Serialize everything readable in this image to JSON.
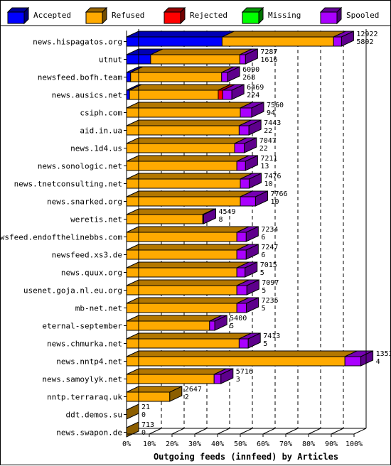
{
  "chart_data": {
    "type": "bar",
    "orientation": "horizontal",
    "stacked": true,
    "style": "3d",
    "title": "",
    "xlabel": "Outgoing feeds (innfeed) by Articles",
    "ylabel": "",
    "x_ticks": [
      "0%",
      "10%",
      "20%",
      "30%",
      "40%",
      "50%",
      "60%",
      "70%",
      "80%",
      "90%",
      "100%"
    ],
    "xlim": [
      0,
      100
    ],
    "legend_position": "top",
    "series": [
      {
        "name": "Accepted",
        "color": "#0000ff",
        "values": [
          42.0,
          10.6,
          1.8,
          1.3,
          0.0,
          0.0,
          0.0,
          0.0,
          0.0,
          0.0,
          0.0,
          0.0,
          0.0,
          0.0,
          0.0,
          0.0,
          0.0,
          0.0,
          0.0,
          0.0,
          0.0,
          0.0,
          0.0
        ]
      },
      {
        "name": "Refused",
        "color": "#ffaa00",
        "values": [
          49.0,
          39.2,
          40.0,
          39.0,
          50.0,
          49.5,
          47.5,
          48.5,
          50.0,
          50.0,
          33.5,
          48.5,
          48.5,
          48.5,
          48.5,
          48.5,
          36.5,
          49.5,
          96.0,
          38.5,
          19.0,
          0.0,
          0.0
        ]
      },
      {
        "name": "Rejected",
        "color": "#ff0000",
        "values": [
          0.0,
          0.0,
          0.0,
          2.0,
          0.0,
          0.0,
          0.0,
          0.0,
          0.0,
          0.0,
          0.0,
          0.0,
          0.0,
          0.0,
          0.0,
          0.0,
          0.0,
          0.0,
          0.0,
          0.0,
          0.0,
          0.0,
          0.0
        ]
      },
      {
        "name": "Missing",
        "color": "#00ff00",
        "values": [
          0,
          0,
          0,
          0,
          0,
          0,
          0,
          0,
          0,
          0,
          0,
          0,
          0,
          0,
          0,
          0,
          0,
          0,
          0,
          0,
          0,
          0,
          0
        ]
      },
      {
        "name": "Spooled",
        "color": "#aa00ff",
        "values": [
          3.5,
          2.5,
          2.6,
          4.0,
          5.0,
          4.3,
          4.3,
          3.8,
          3.9,
          6.7,
          0.4,
          4.1,
          4.1,
          3.6,
          4.4,
          4.2,
          2.3,
          4.0,
          7.0,
          3.0,
          0.0,
          0.0,
          0.0
        ]
      }
    ],
    "categories": [
      "news.hispagatos.org",
      "utnut",
      "newsfeed.bofh.team",
      "news.ausics.net",
      "csiph.com",
      "aid.in.ua",
      "news.1d4.us",
      "news.sonologic.net",
      "news.tnetconsulting.net",
      "news.snarked.org",
      "weretis.net",
      "newsfeed.endofthelinebbs.com",
      "newsfeed.xs3.de",
      "news.quux.org",
      "usenet.goja.nl.eu.org",
      "mb-net.net",
      "eternal-september",
      "news.chmurka.net",
      "news.nntp4.net",
      "news.samoylyk.net",
      "nntp.terraraq.uk",
      "ddt.demos.su",
      "news.swapon.de"
    ],
    "value_labels": [
      [
        "12922",
        "5802"
      ],
      [
        "7287",
        "1616"
      ],
      [
        "6090",
        "268"
      ],
      [
        "6469",
        "224"
      ],
      [
        "7560",
        "94"
      ],
      [
        "7443",
        "22"
      ],
      [
        "7047",
        "22"
      ],
      [
        "7211",
        "13"
      ],
      [
        "7476",
        "10"
      ],
      [
        "7766",
        "10"
      ],
      [
        "4549",
        "8"
      ],
      [
        "7234",
        "6"
      ],
      [
        "7247",
        "6"
      ],
      [
        "7015",
        "5"
      ],
      [
        "7097",
        "5"
      ],
      [
        "7235",
        "5"
      ],
      [
        "5400",
        "5"
      ],
      [
        "7413",
        "5"
      ],
      [
        "13538",
        "4"
      ],
      [
        "5716",
        "3"
      ],
      [
        "2647",
        "2"
      ],
      [
        "21",
        "0"
      ],
      [
        "713",
        "0"
      ]
    ],
    "total_value_scale": 13538
  },
  "legend": {
    "items": [
      {
        "name": "Accepted",
        "color": "#0000ff"
      },
      {
        "name": "Refused",
        "color": "#ffaa00"
      },
      {
        "name": "Rejected",
        "color": "#ff0000"
      },
      {
        "name": "Missing",
        "color": "#00ff00"
      },
      {
        "name": "Spooled",
        "color": "#aa00ff"
      }
    ]
  }
}
